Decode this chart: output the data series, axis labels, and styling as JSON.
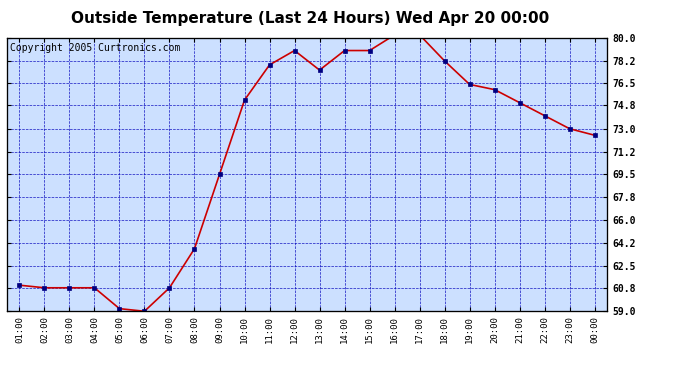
{
  "title": "Outside Temperature (Last 24 Hours) Wed Apr 20 00:00",
  "copyright": "Copyright 2005 Curtronics.com",
  "x_labels": [
    "01:00",
    "02:00",
    "03:00",
    "04:00",
    "05:00",
    "06:00",
    "07:00",
    "08:00",
    "09:00",
    "10:00",
    "11:00",
    "12:00",
    "13:00",
    "14:00",
    "15:00",
    "16:00",
    "17:00",
    "18:00",
    "19:00",
    "20:00",
    "21:00",
    "22:00",
    "23:00",
    "00:00"
  ],
  "y_values": [
    61.0,
    60.8,
    60.8,
    60.8,
    59.2,
    59.0,
    60.8,
    63.8,
    69.5,
    75.2,
    77.9,
    79.0,
    77.5,
    79.0,
    79.0,
    80.2,
    80.2,
    78.2,
    76.4,
    76.0,
    75.0,
    74.0,
    73.0,
    72.5
  ],
  "ylim": [
    59.0,
    80.0
  ],
  "yticks": [
    59.0,
    60.8,
    62.5,
    64.2,
    66.0,
    67.8,
    69.5,
    71.2,
    73.0,
    74.8,
    76.5,
    78.2,
    80.0
  ],
  "line_color": "#cc0000",
  "marker_color": "#000080",
  "bg_color": "#cce0ff",
  "grid_color": "#0000bb",
  "title_fontsize": 11,
  "copyright_fontsize": 7
}
